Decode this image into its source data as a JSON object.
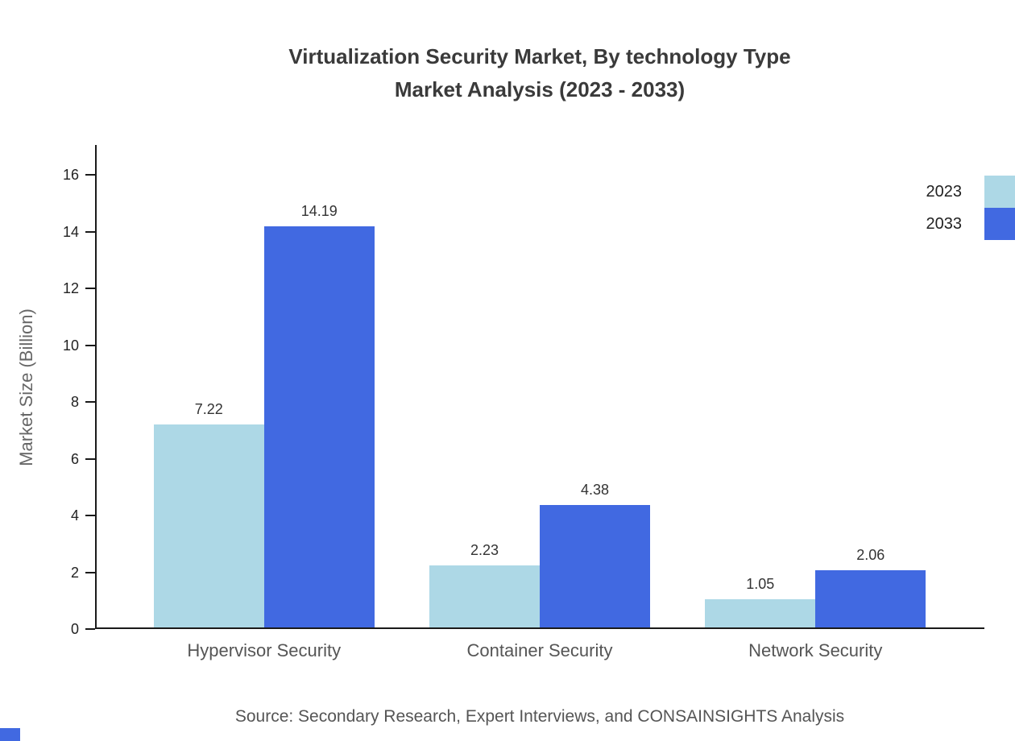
{
  "title": {
    "line1": "Virtualization Security Market, By technology Type",
    "line2": "Market Analysis (2023 - 2033)"
  },
  "source": "Source: Secondary Research, Expert Interviews, and CONSAINSIGHTS Analysis",
  "chart_data": {
    "type": "bar",
    "title": "Virtualization Security Market, By technology Type Market Analysis (2023 - 2033)",
    "categories": [
      "Hypervisor Security",
      "Container Security",
      "Network Security"
    ],
    "series": [
      {
        "name": "2023",
        "color": "#ADD8E6",
        "values": [
          7.22,
          2.23,
          1.05
        ]
      },
      {
        "name": "2033",
        "color": "#4169E1",
        "values": [
          14.19,
          4.38,
          2.06
        ]
      }
    ],
    "xlabel": "",
    "ylabel": "Market Size (Billion)",
    "ylim": [
      0,
      16
    ],
    "ytick_step": 2,
    "grid": false,
    "legend_position": "top-right",
    "value_labels": true,
    "value_decimals": 2
  }
}
